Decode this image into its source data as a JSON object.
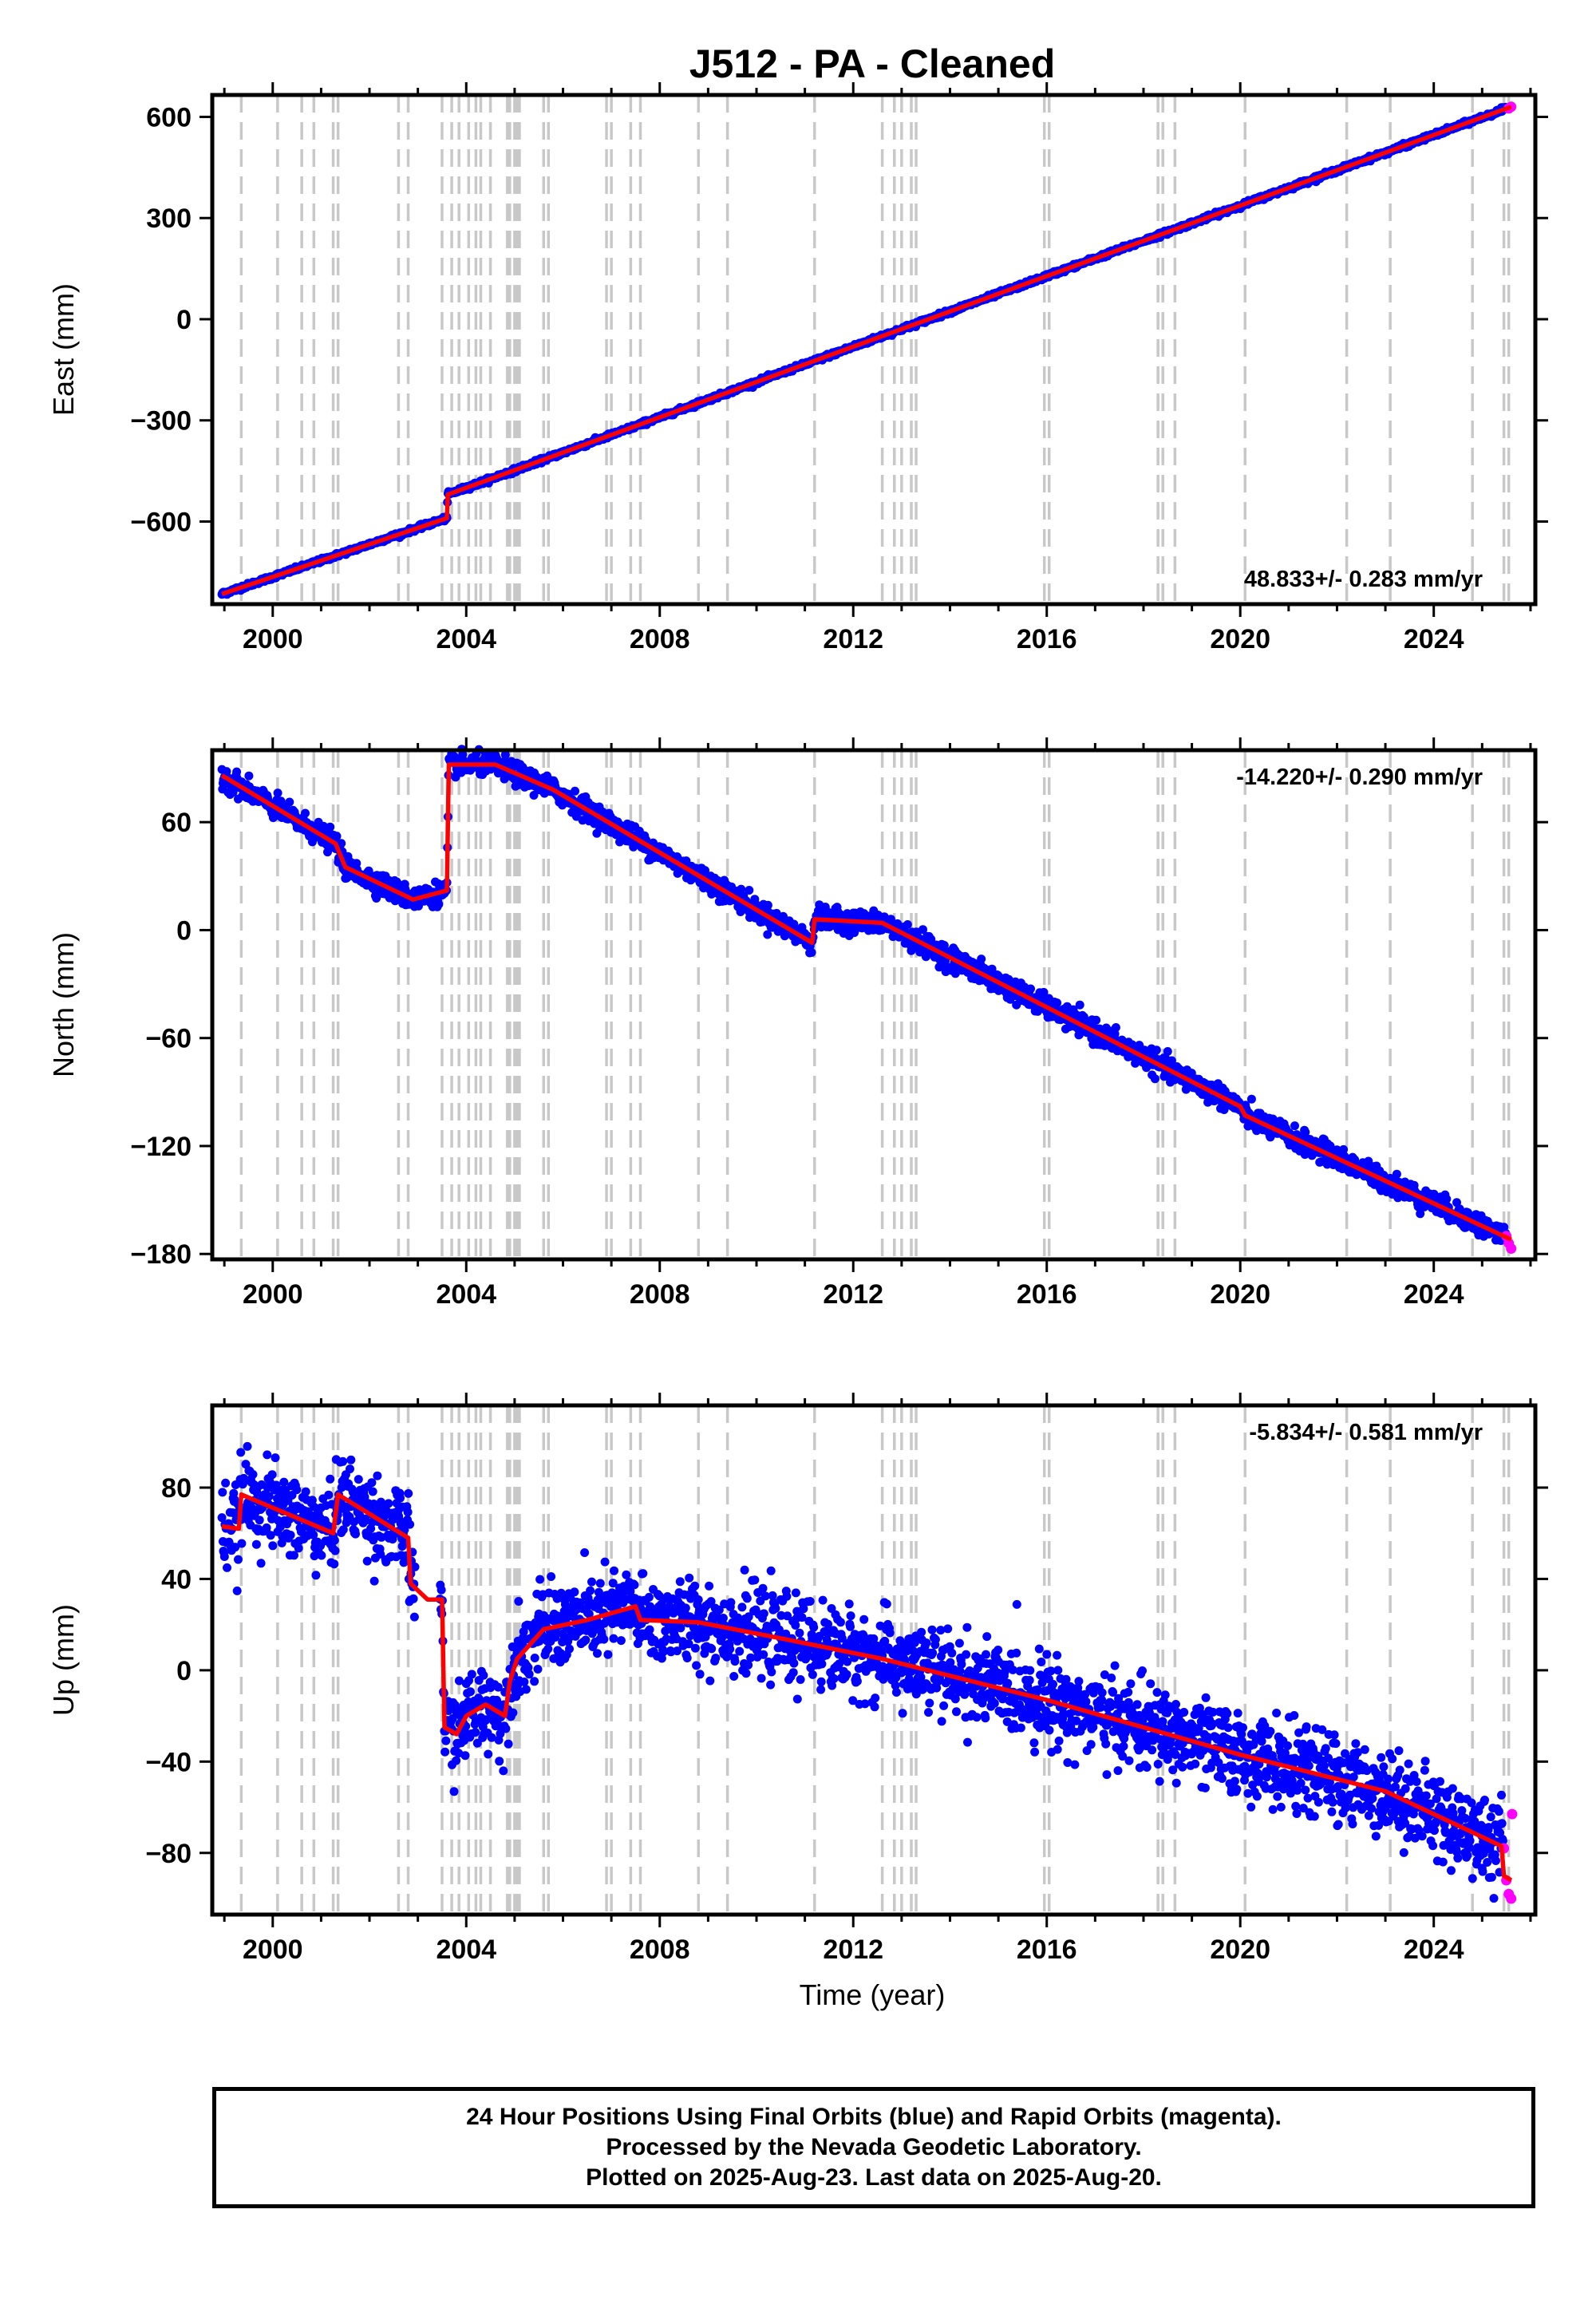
{
  "chart_data": {
    "title": "J512  - PA - Cleaned",
    "type": "scatter",
    "xlabel": "Time (year)",
    "xlim": [
      1998.75,
      2026.1
    ],
    "x_ticks": [
      2000,
      2004,
      2008,
      2012,
      2016,
      2020,
      2024
    ],
    "offset_dates": [
      1999.35,
      2000.1,
      2000.6,
      2000.85,
      2001.25,
      2001.35,
      2002.6,
      2002.8,
      2003.5,
      2003.7,
      2003.85,
      2004.05,
      2004.2,
      2004.3,
      2004.5,
      2004.85,
      2004.9,
      2005.0,
      2005.05,
      2005.1,
      2005.6,
      2005.7,
      2006.9,
      2007.0,
      2007.4,
      2007.6,
      2008.8,
      2009.4,
      2011.2,
      2012.6,
      2012.85,
      2013.0,
      2013.2,
      2013.3,
      2015.95,
      2016.05,
      2018.3,
      2018.4,
      2018.65,
      2020.1,
      2022.2,
      2023.1,
      2024.8,
      2025.45,
      2025.55
    ],
    "panels": [
      {
        "name": "east",
        "ylabel": "East (mm)",
        "ylim": [
          -845,
          665
        ],
        "yticks": [
          600,
          300,
          0,
          -300,
          -600
        ],
        "rate": "48.833+/- 0.283 mm/yr",
        "rate_pos": "bottom-right",
        "final_orbits_model": [
          [
            1998.95,
            -815
          ],
          [
            2003.6,
            -590
          ],
          [
            2003.62,
            -520
          ],
          [
            2025.6,
            630
          ]
        ],
        "scatter_sd": 3,
        "rapid_orbits": [
          [
            2025.55,
            625
          ],
          [
            2025.6,
            630
          ]
        ]
      },
      {
        "name": "north",
        "ylabel": "North (mm)",
        "ylim": [
          -183,
          100
        ],
        "yticks": [
          60,
          0,
          -60,
          -120,
          -180
        ],
        "rate": "-14.220+/- 0.290 mm/yr",
        "rate_pos": "top-right",
        "final_orbits_model": [
          [
            1998.95,
            86
          ],
          [
            2001.3,
            48
          ],
          [
            2001.5,
            35
          ],
          [
            2002.9,
            17
          ],
          [
            2003.6,
            22
          ],
          [
            2003.64,
            92
          ],
          [
            2004.6,
            92
          ],
          [
            2005.8,
            78
          ],
          [
            2011.15,
            -7
          ],
          [
            2011.2,
            6
          ],
          [
            2012.6,
            4
          ],
          [
            2020.0,
            -98
          ],
          [
            2020.1,
            -103
          ],
          [
            2025.6,
            -172
          ]
        ],
        "scatter_sd": 3,
        "rapid_orbits": [
          [
            2025.5,
            -170
          ],
          [
            2025.55,
            -174
          ],
          [
            2025.6,
            -177
          ]
        ]
      },
      {
        "name": "up",
        "ylabel": "Up (mm)",
        "ylim": [
          -107,
          116
        ],
        "yticks": [
          80,
          40,
          0,
          -40,
          -80
        ],
        "rate": "-5.834+/- 0.581 mm/yr",
        "rate_pos": "top-right",
        "final_orbits_model": [
          [
            1998.95,
            63
          ],
          [
            1999.3,
            62
          ],
          [
            1999.35,
            77
          ],
          [
            2001.25,
            60
          ],
          [
            2001.35,
            77
          ],
          [
            2002.8,
            58
          ],
          [
            2002.85,
            38
          ],
          [
            2003.2,
            31
          ],
          [
            2003.5,
            31
          ],
          [
            2003.55,
            -25
          ],
          [
            2003.8,
            -28
          ],
          [
            2004.0,
            -20
          ],
          [
            2004.4,
            -15
          ],
          [
            2004.8,
            -20
          ],
          [
            2004.9,
            -5
          ],
          [
            2005.05,
            5
          ],
          [
            2005.6,
            18
          ],
          [
            2006.5,
            22
          ],
          [
            2007.5,
            28
          ],
          [
            2007.6,
            22
          ],
          [
            2008.8,
            21
          ],
          [
            2010.5,
            14
          ],
          [
            2012.6,
            5
          ],
          [
            2016.0,
            -13
          ],
          [
            2020.0,
            -37
          ],
          [
            2023.0,
            -53
          ],
          [
            2025.4,
            -77
          ],
          [
            2025.45,
            -90
          ],
          [
            2025.6,
            -92
          ]
        ],
        "scatter_sd": 9,
        "rapid_orbits": [
          [
            2025.45,
            -78
          ],
          [
            2025.5,
            -92
          ],
          [
            2025.55,
            -98
          ],
          [
            2025.6,
            -100
          ],
          [
            2025.62,
            -63
          ]
        ]
      }
    ]
  },
  "caption": {
    "line1": "24 Hour Positions Using Final Orbits (blue) and Rapid Orbits (magenta).",
    "line2": "Processed by the Nevada Geodetic Laboratory.",
    "line3": "Plotted on 2025-Aug-23. Last data on 2025-Aug-20."
  },
  "colors": {
    "final_orbits": "#0000ff",
    "rapid_orbits": "#ff00ff",
    "trend_line": "#ff0000",
    "offset_lines": "#c8c8c8",
    "frame": "#000000"
  }
}
